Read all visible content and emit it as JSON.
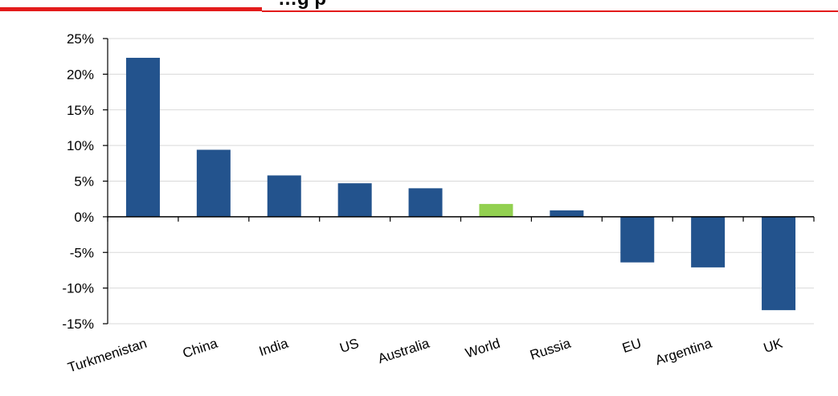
{
  "colors": {
    "bar": "#23538d",
    "highlight": "#92d050",
    "header_rule": "#e31b1b",
    "grid": "#d9d9d9",
    "axis": "#000000"
  },
  "chart_data": {
    "type": "bar",
    "title": "…g p",
    "categories": [
      "Turkmenistan",
      "China",
      "India",
      "US",
      "Australia",
      "World",
      "Russia",
      "EU",
      "Argentina",
      "UK"
    ],
    "values": [
      22.3,
      9.4,
      5.8,
      4.7,
      4.0,
      1.8,
      0.9,
      -6.4,
      -7.1,
      -13.1
    ],
    "highlight_category": "World",
    "unit": "%",
    "ylim": [
      -15,
      25
    ],
    "yticks": [
      25,
      20,
      15,
      10,
      5,
      0,
      -5,
      -10,
      -15
    ],
    "ytick_labels": [
      "25%",
      "20%",
      "15%",
      "10%",
      "5%",
      "0%",
      "-5%",
      "-10%",
      "-15%"
    ],
    "grid": true,
    "legend": "none"
  }
}
